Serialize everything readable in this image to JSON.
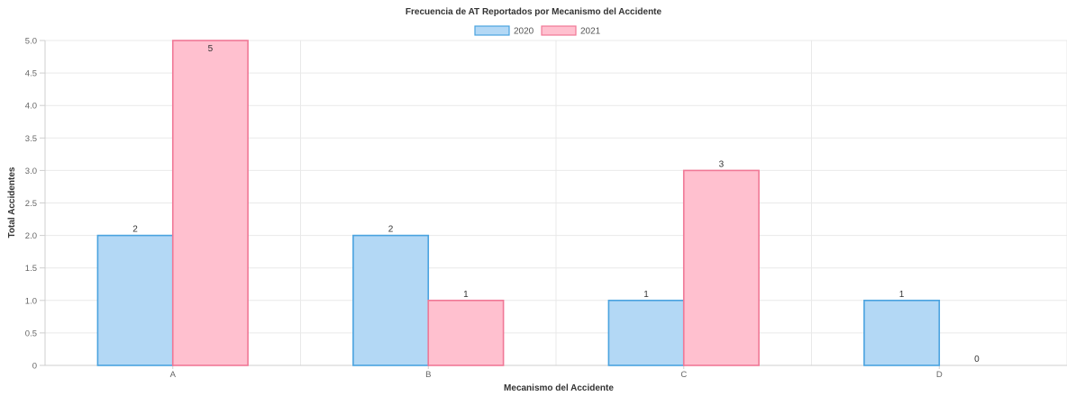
{
  "chart_data": {
    "type": "bar",
    "title": "Frecuencia de AT Reportados por Mecanismo del Accidente",
    "xlabel": "Mecanismo del Accidente",
    "ylabel": "Total Accidentes",
    "categories": [
      "A",
      "B",
      "C",
      "D"
    ],
    "series": [
      {
        "name": "2020",
        "values": [
          2,
          2,
          1,
          1
        ],
        "fill": "#b3d8f5",
        "stroke": "#4aa3df"
      },
      {
        "name": "2021",
        "values": [
          5,
          1,
          3,
          0
        ],
        "fill": "#ffc0cf",
        "stroke": "#f07896"
      }
    ],
    "ylim": [
      0,
      5
    ],
    "yticks": [
      "0",
      "0.5",
      "1.0",
      "1.5",
      "2.0",
      "2.5",
      "3.0",
      "3.5",
      "4.0",
      "4.5",
      "5.0"
    ],
    "ytick_values": [
      0,
      0.5,
      1,
      1.5,
      2,
      2.5,
      3,
      3.5,
      4,
      4.5,
      5
    ],
    "grid": true,
    "legend_position": "top-center",
    "data_labels": true
  }
}
